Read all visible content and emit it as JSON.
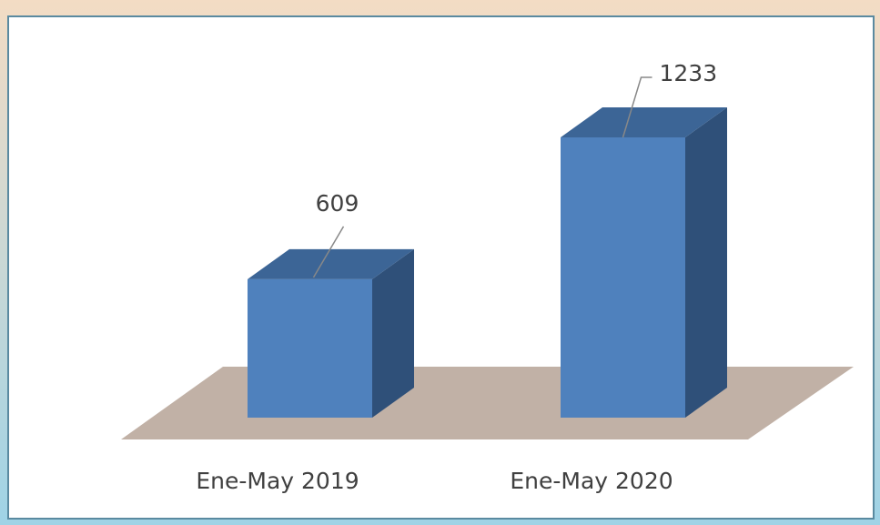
{
  "chart_data": {
    "type": "bar",
    "categories": [
      "Ene-May 2019",
      "Ene-May 2020"
    ],
    "values": [
      609,
      1233
    ],
    "color": "#4f81bd"
  }
}
